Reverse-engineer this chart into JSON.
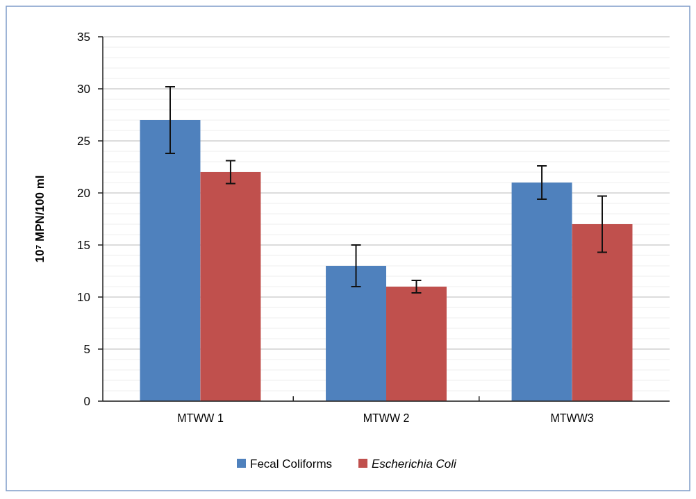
{
  "chart_data": {
    "type": "bar",
    "ylabel": "10⁷ MPN/100 ml",
    "categories": [
      "MTWW 1",
      "MTWW 2",
      "MTWW3"
    ],
    "series": [
      {
        "name": "Fecal Coliforms",
        "color": "#4f81bd",
        "values": [
          27,
          13,
          21
        ],
        "errors": [
          3.2,
          2,
          1.6
        ]
      },
      {
        "name": "Escherichia Coli",
        "color": "#c0504d",
        "values": [
          22,
          11,
          17
        ],
        "errors": [
          1.1,
          0.6,
          2.7
        ]
      }
    ],
    "ylim": [
      0,
      35
    ],
    "yticks": [
      0,
      5,
      10,
      15,
      20,
      25,
      30,
      35
    ],
    "grid": "y",
    "legend": "bottom"
  }
}
